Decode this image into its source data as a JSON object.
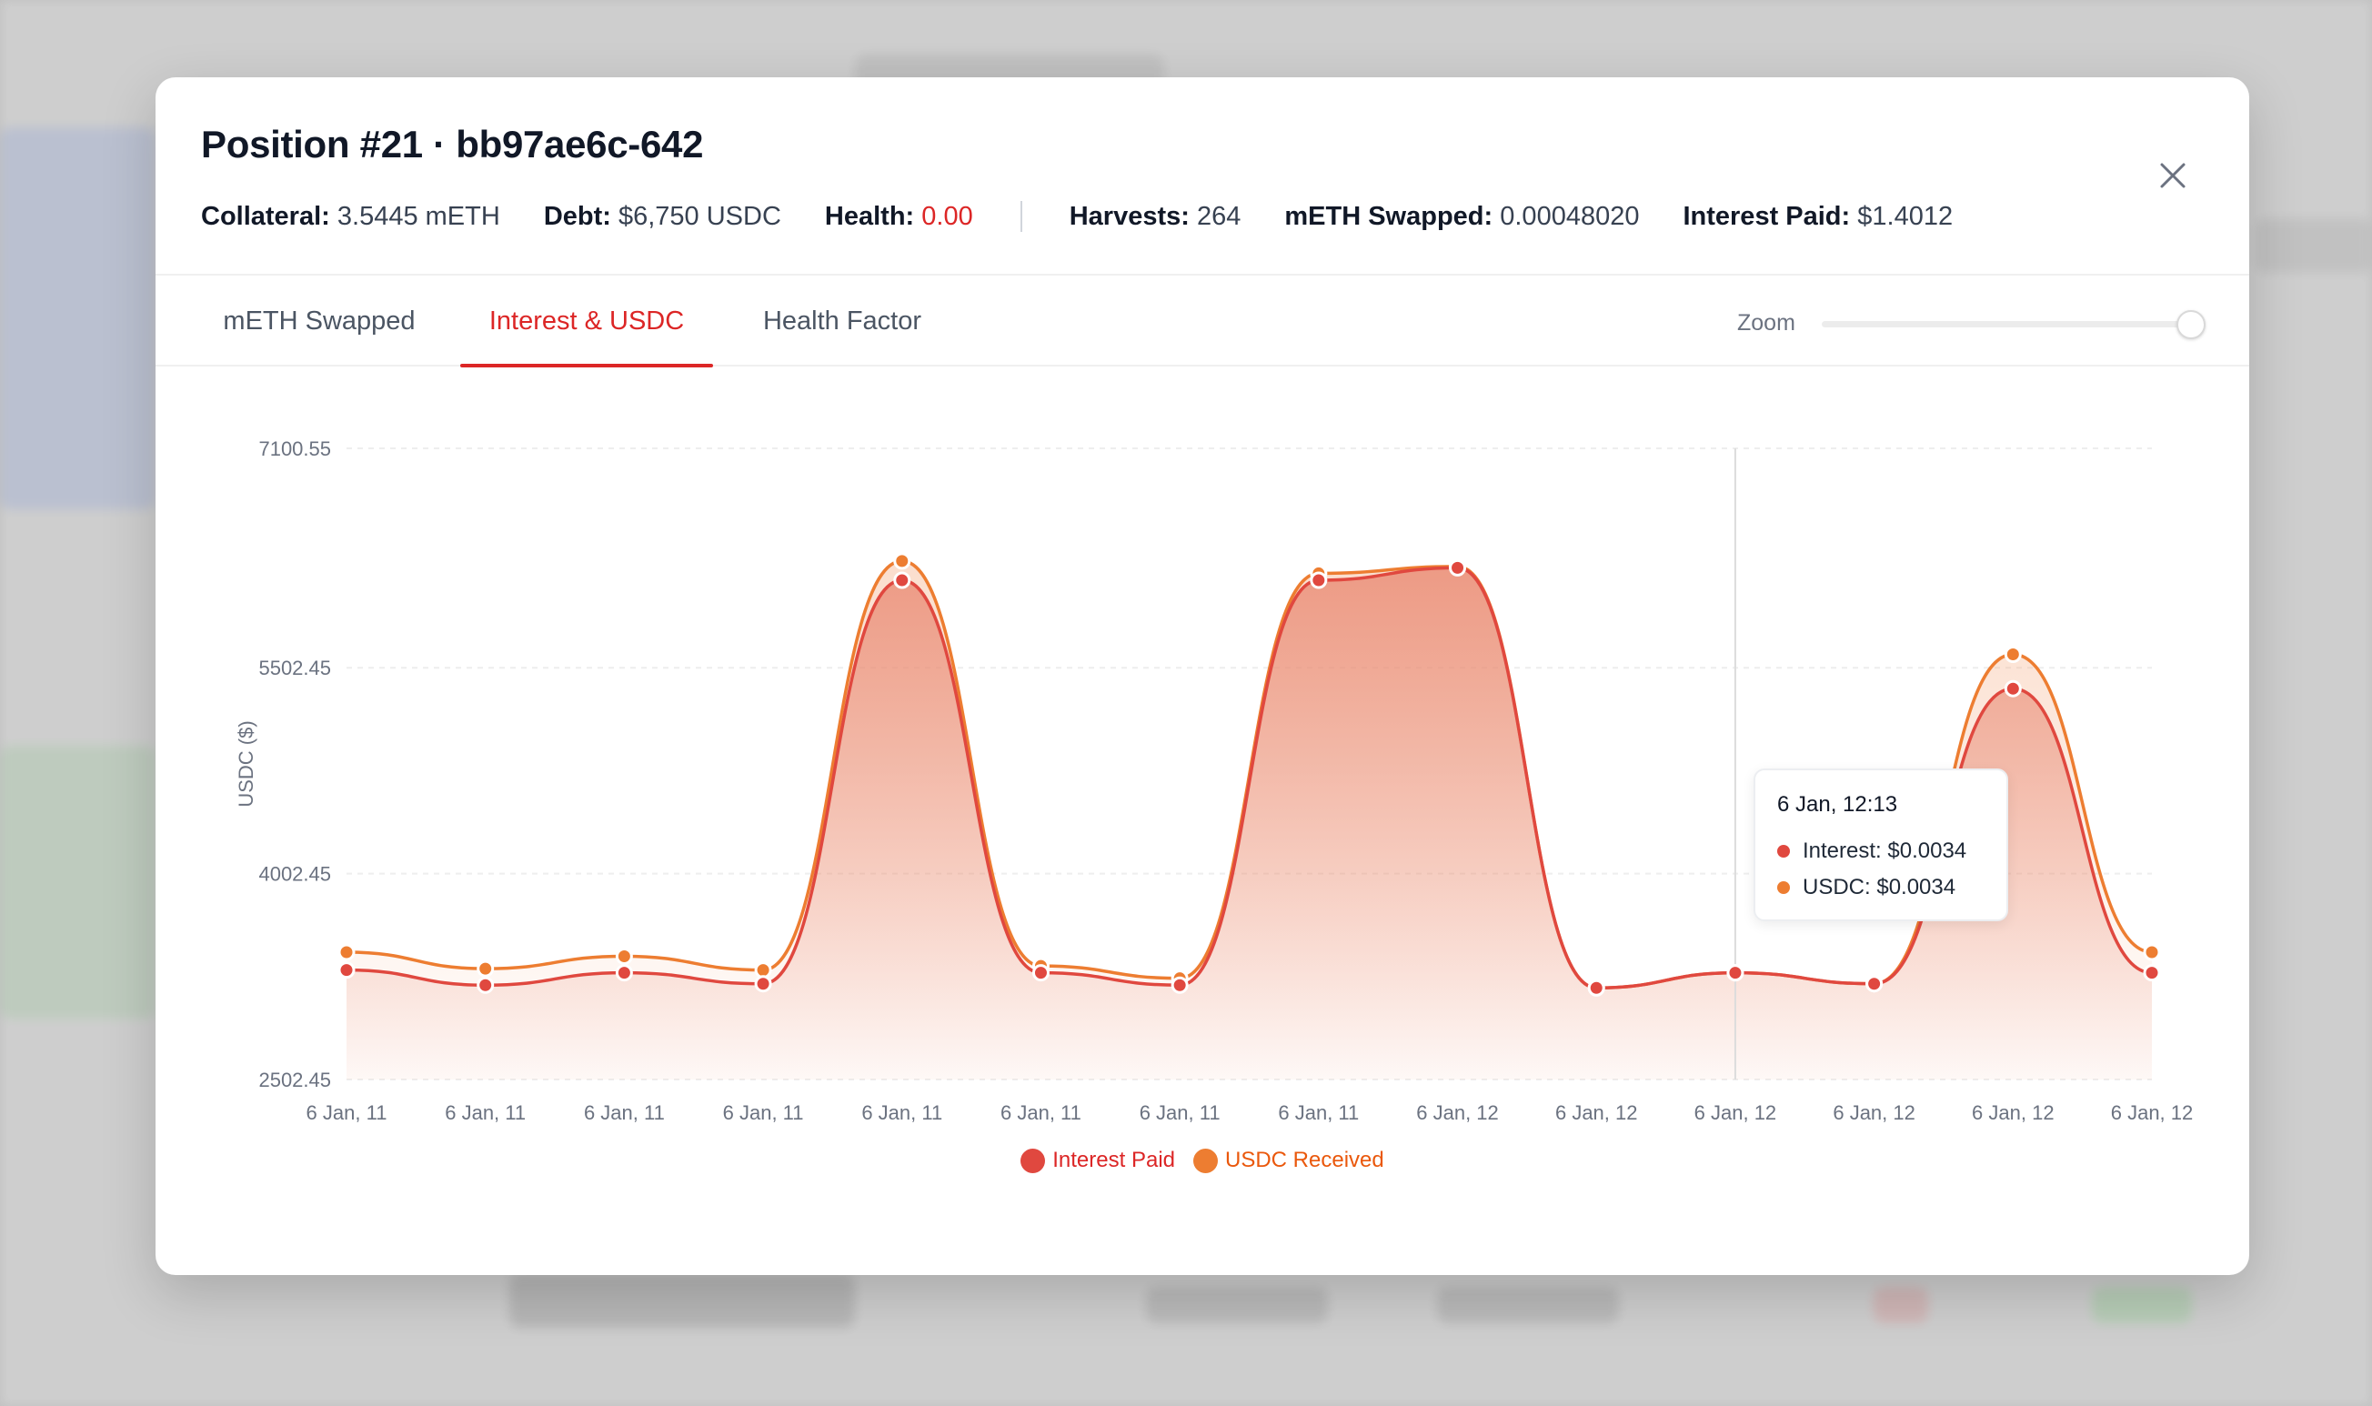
{
  "modal": {
    "title": "Position #21 · bb97ae6c-642",
    "stats": [
      {
        "label": "Collateral:",
        "value": "3.5445 mETH"
      },
      {
        "label": "Debt:",
        "value": "$6,750 USDC"
      },
      {
        "label": "Health:",
        "value": "0.00",
        "status_color": "#dc2626"
      },
      {
        "label": "Harvests:",
        "value": "264"
      },
      {
        "label": "mETH Swapped:",
        "value": "0.00048020"
      },
      {
        "label": "Interest Paid:",
        "value": "$1.4012"
      }
    ],
    "tabs": [
      {
        "label": "mETH Swapped",
        "active": false
      },
      {
        "label": "Interest & USDC",
        "active": true
      },
      {
        "label": "Health Factor",
        "active": false
      }
    ],
    "zoom": {
      "label": "Zoom",
      "value": 1.0
    },
    "close_icon": "close-icon"
  },
  "chart_data": {
    "type": "area",
    "ylabel": "USDC ($)",
    "ylim": [
      2502.45,
      7100.55
    ],
    "yticks": [
      2502.45,
      4002.45,
      5502.45,
      7100.55
    ],
    "ytick_labels": [
      "2502.45",
      "4002.45",
      "5502.45",
      "7100.55"
    ],
    "x_tick_labels": [
      "6 Jan, 11",
      "6 Jan, 11",
      "6 Jan, 11",
      "6 Jan, 11",
      "6 Jan, 11",
      "6 Jan, 11",
      "6 Jan, 11",
      "6 Jan, 11",
      "6 Jan, 12",
      "6 Jan, 12",
      "6 Jan, 12",
      "6 Jan, 12",
      "6 Jan, 12",
      "6 Jan, 12"
    ],
    "grid": true,
    "legend_position": "bottom-center",
    "series": [
      {
        "name": "Interest Paid",
        "color": "#e0483f",
        "values": [
          3300,
          3190,
          3280,
          3200,
          6140,
          3280,
          3190,
          6140,
          6230,
          3170,
          3280,
          3200,
          5350,
          3280
        ]
      },
      {
        "name": "USDC Received",
        "color": "#ed7d31",
        "values": [
          3430,
          3310,
          3400,
          3300,
          6280,
          3330,
          3240,
          6190,
          6240,
          3170,
          3280,
          3200,
          5600,
          3430
        ]
      }
    ],
    "tooltip": {
      "title": "6 Jan, 12:13",
      "index": 10,
      "rows": [
        {
          "label": "Interest:",
          "value": "$0.0034",
          "color": "#e0483f"
        },
        {
          "label": "USDC:",
          "value": "$0.0034",
          "color": "#ed7d31"
        }
      ]
    }
  }
}
